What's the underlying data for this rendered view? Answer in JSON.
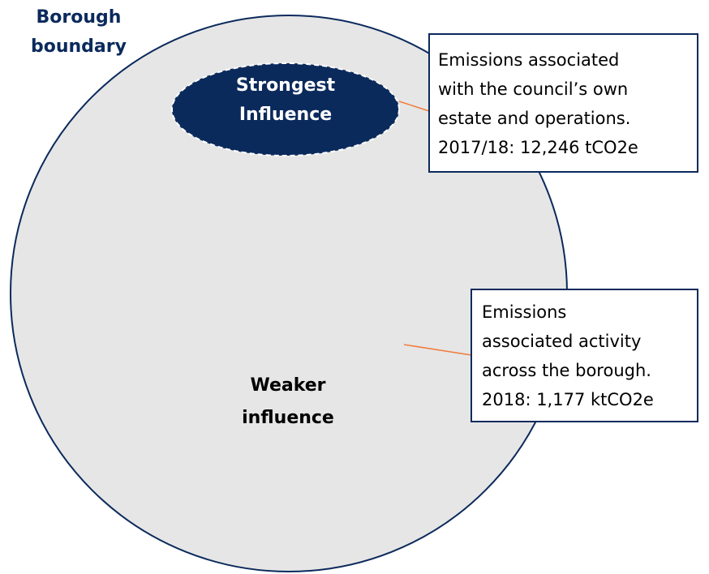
{
  "boundary_label": [
    "Borough",
    "boundary"
  ],
  "inner": {
    "label": [
      "Strongest",
      "Influence"
    ]
  },
  "outer": {
    "label": [
      "Weaker",
      "influence"
    ]
  },
  "callouts": [
    {
      "lines": [
        "Emissions associated",
        "with the council’s own",
        "estate and operations.",
        "2017/18: 12,246 tCO2e"
      ]
    },
    {
      "lines": [
        "Emissions",
        "associated activity",
        "across the borough.",
        "2018: 1,177 ktCO2e"
      ]
    }
  ]
}
